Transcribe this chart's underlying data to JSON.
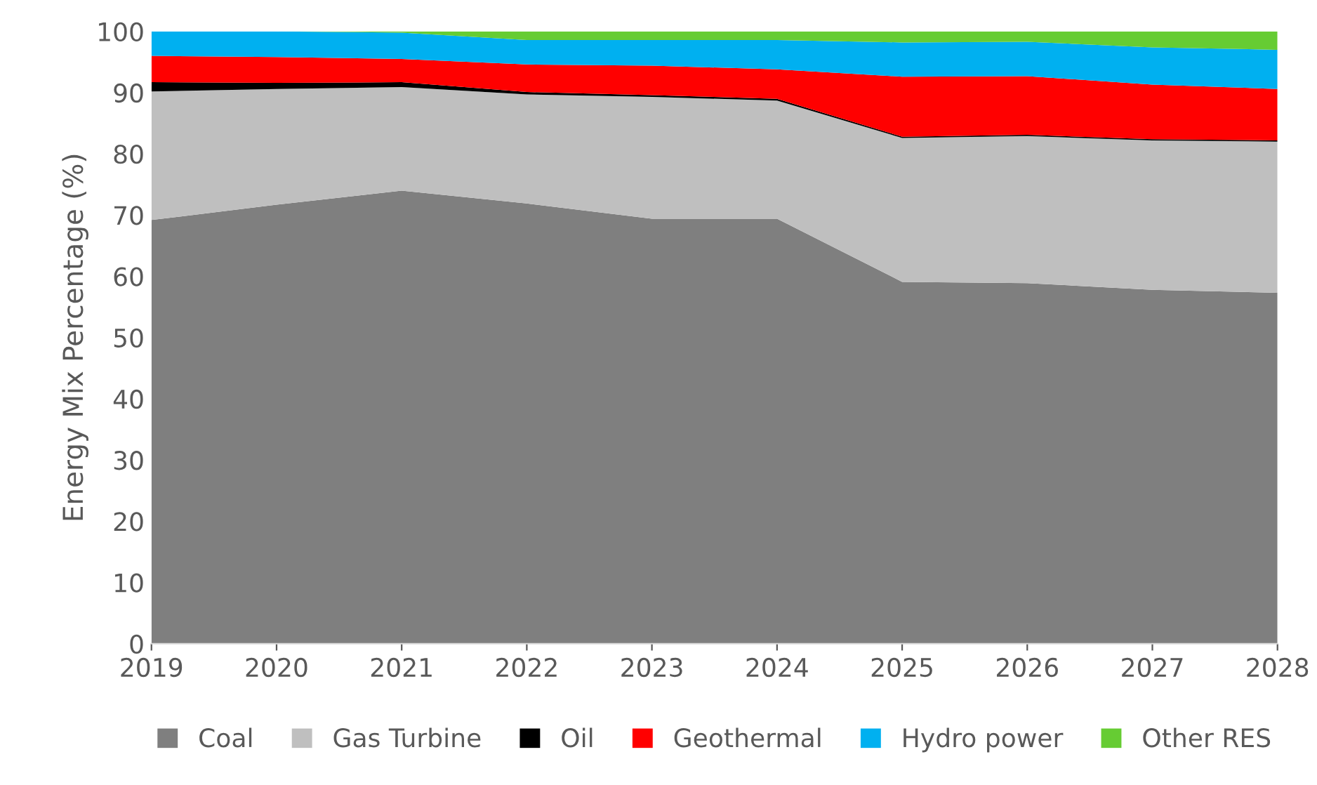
{
  "chart_data": {
    "type": "area",
    "stacked": true,
    "ylabel": "Energy Mix Percentage (%)",
    "categories": [
      "2019",
      "2020",
      "2021",
      "2022",
      "2023",
      "2024",
      "2025",
      "2026",
      "2027",
      "2028"
    ],
    "series": [
      {
        "name": "Coal",
        "color": "#7f7f7f",
        "values": [
          69.2,
          71.7,
          74.0,
          71.9,
          69.4,
          69.4,
          59.1,
          58.9,
          57.8,
          57.3
        ]
      },
      {
        "name": "Gas Turbine",
        "color": "#bfbfbf",
        "values": [
          21.0,
          18.9,
          16.9,
          17.8,
          19.9,
          19.3,
          23.5,
          24.0,
          24.4,
          24.7
        ]
      },
      {
        "name": "Oil",
        "color": "#000000",
        "values": [
          1.5,
          1.0,
          0.8,
          0.4,
          0.3,
          0.3,
          0.2,
          0.2,
          0.2,
          0.2
        ]
      },
      {
        "name": "Geothermal",
        "color": "#ff0000",
        "values": [
          4.3,
          4.2,
          3.8,
          4.5,
          4.8,
          4.8,
          9.8,
          9.6,
          8.9,
          8.4
        ]
      },
      {
        "name": "Hydro power",
        "color": "#00b0f0",
        "values": [
          4.0,
          4.2,
          4.3,
          4.0,
          4.2,
          4.8,
          5.6,
          5.6,
          6.1,
          6.4
        ]
      },
      {
        "name": "Other RES",
        "color": "#66cc33",
        "values": [
          0,
          0,
          0.2,
          1.4,
          1.4,
          1.4,
          1.8,
          1.7,
          2.6,
          3.0
        ]
      }
    ],
    "ylim": [
      0,
      100
    ],
    "yticks": [
      0,
      10,
      20,
      30,
      40,
      50,
      60,
      70,
      80,
      90,
      100
    ],
    "grid": false,
    "legend": "bottom"
  }
}
